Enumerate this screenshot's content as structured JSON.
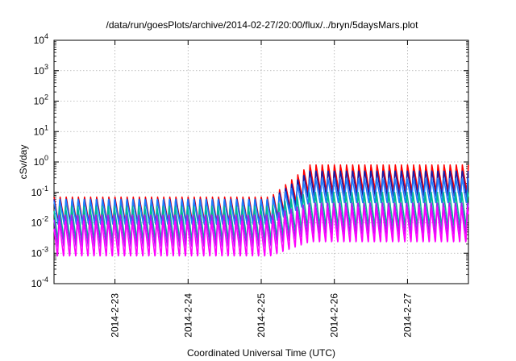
{
  "chart_data": {
    "type": "line",
    "title": "/data/run/goesPlots/archive/2014-02-27/20:00/flux/../bryn/5daysMars.plot",
    "xlabel": "Coordinated Universal Time (UTC)",
    "ylabel": "cSv/day",
    "y_scale": "log",
    "ylim": [
      0.0001,
      10000
    ],
    "xlim": [
      "2014-02-22T04:00",
      "2014-02-27T20:00"
    ],
    "x_ticks": [
      "2014-2-23",
      "2014-2-24",
      "2014-2-25",
      "2014-2-26",
      "2014-2-27"
    ],
    "y_ticks": [
      {
        "base": "10",
        "exp": "-4"
      },
      {
        "base": "10",
        "exp": "-3"
      },
      {
        "base": "10",
        "exp": "-2"
      },
      {
        "base": "10",
        "exp": "-1"
      },
      {
        "base": "10",
        "exp": "0"
      },
      {
        "base": "10",
        "exp": "1"
      },
      {
        "base": "10",
        "exp": "2"
      },
      {
        "base": "10",
        "exp": "3"
      },
      {
        "base": "10",
        "exp": "4"
      }
    ],
    "grid": true,
    "legend": "none",
    "orbit_period_hours": 2,
    "series": [
      {
        "color": "#ff0000",
        "peak_before": 0.07,
        "peak_after": 0.8,
        "trough_ratio": 0.13
      },
      {
        "color": "#1a1aa6",
        "peak_before": 0.065,
        "peak_after": 0.55,
        "trough_ratio": 0.13
      },
      {
        "color": "#1e7fff",
        "peak_before": 0.06,
        "peak_after": 0.3,
        "trough_ratio": 0.14
      },
      {
        "color": "#00b894",
        "peak_before": 0.035,
        "peak_after": 0.1,
        "trough_ratio": 0.07
      },
      {
        "color": "#a020f0",
        "peak_before": 0.02,
        "peak_after": 0.05,
        "trough_ratio": 0.08
      },
      {
        "color": "#ff00ff",
        "peak_before": 0.012,
        "peak_after": 0.035,
        "trough_ratio": 0.06
      }
    ]
  }
}
